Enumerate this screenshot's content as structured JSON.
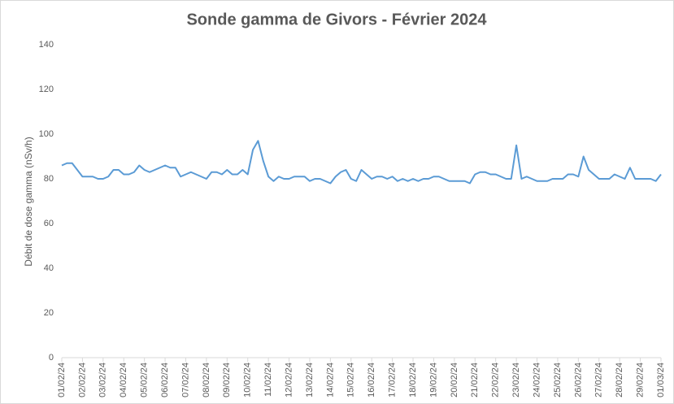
{
  "chart_data": {
    "type": "line",
    "title": "Sonde gamma de Givors - Février 2024",
    "y_label": "Débit de dose gamma (nSv/h)",
    "categories": [
      "01/02/24",
      null,
      null,
      null,
      "02/02/24",
      null,
      null,
      null,
      "03/02/24",
      null,
      null,
      null,
      "04/02/24",
      null,
      null,
      null,
      "05/02/24",
      null,
      null,
      null,
      "06/02/24",
      null,
      null,
      null,
      "07/02/24",
      null,
      null,
      null,
      "08/02/24",
      null,
      null,
      null,
      "09/02/24",
      null,
      null,
      null,
      "10/02/24",
      null,
      null,
      null,
      "11/02/24",
      null,
      null,
      null,
      "12/02/24",
      null,
      null,
      null,
      "13/02/24",
      null,
      null,
      null,
      "14/02/24",
      null,
      null,
      null,
      "15/02/24",
      null,
      null,
      null,
      "16/02/24",
      null,
      null,
      null,
      "17/02/24",
      null,
      null,
      null,
      "18/02/24",
      null,
      null,
      null,
      "19/02/24",
      null,
      null,
      null,
      "20/02/24",
      null,
      null,
      null,
      "21/02/24",
      null,
      null,
      null,
      "22/02/24",
      null,
      null,
      null,
      "23/02/24",
      null,
      null,
      null,
      "24/02/24",
      null,
      null,
      null,
      "25/02/24",
      null,
      null,
      null,
      "26/02/24",
      null,
      null,
      null,
      "27/02/24",
      null,
      null,
      null,
      "28/02/24",
      null,
      null,
      null,
      "29/02/24",
      null,
      null,
      null,
      "01/03/24"
    ],
    "series": [
      {
        "name": "Débit de dose gamma",
        "color": "#5b9bd5",
        "values": [
          86,
          87,
          87,
          84,
          81,
          81,
          81,
          80,
          80,
          81,
          84,
          84,
          82,
          82,
          83,
          86,
          84,
          83,
          84,
          85,
          86,
          85,
          85,
          81,
          82,
          83,
          82,
          81,
          80,
          83,
          83,
          82,
          84,
          82,
          82,
          84,
          82,
          93,
          97,
          88,
          81,
          79,
          81,
          80,
          80,
          81,
          81,
          81,
          79,
          80,
          80,
          79,
          78,
          81,
          83,
          84,
          80,
          79,
          84,
          82,
          80,
          81,
          81,
          80,
          81,
          79,
          80,
          79,
          80,
          79,
          80,
          80,
          81,
          81,
          80,
          79,
          79,
          79,
          79,
          78,
          82,
          83,
          83,
          82,
          82,
          81,
          80,
          80,
          95,
          80,
          81,
          80,
          79,
          79,
          79,
          80,
          80,
          80,
          82,
          82,
          81,
          90,
          84,
          82,
          80,
          80,
          80,
          82,
          81,
          80,
          85,
          80,
          80,
          80,
          80,
          79,
          82
        ]
      }
    ],
    "ylim": [
      0,
      140
    ],
    "yticks": [
      0,
      20,
      40,
      60,
      80,
      100,
      120,
      140
    ],
    "grid": false
  }
}
